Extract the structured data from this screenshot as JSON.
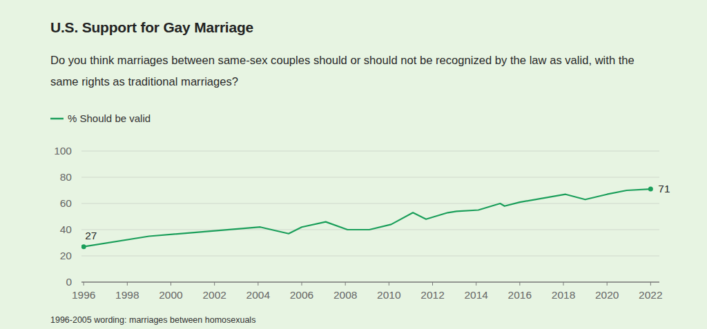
{
  "chart_data": {
    "type": "line",
    "title": "U.S. Support for Gay Marriage",
    "subtitle": "Do you think marriages between same-sex couples should or should not be recognized by the law as valid, with the same rights as traditional marriages?",
    "x": [
      1996,
      1999,
      2004.1,
      2005.4,
      2006,
      2007.1,
      2008.1,
      2009.1,
      2010.1,
      2011.1,
      2011.7,
      2012.7,
      2013.1,
      2014.1,
      2015.1,
      2015.3,
      2016,
      2018.1,
      2019,
      2020,
      2020.9,
      2022
    ],
    "series": [
      {
        "name": "% Should be valid",
        "color": "#1a9e5a",
        "marker": "endpoints",
        "values": [
          27,
          35,
          42,
          37,
          42,
          46,
          40,
          40,
          44,
          53,
          48,
          53,
          54,
          55,
          60,
          58,
          61,
          67,
          63,
          67,
          70,
          71
        ],
        "value_labels": [
          "27",
          null,
          null,
          null,
          null,
          null,
          null,
          null,
          null,
          null,
          null,
          null,
          null,
          null,
          null,
          null,
          null,
          null,
          null,
          null,
          null,
          "71"
        ]
      }
    ],
    "xlim": [
      1995.9,
      2022.4
    ],
    "ylim": [
      0,
      100
    ],
    "xticks": [
      1996,
      1998,
      2000,
      2002,
      2004,
      2006,
      2008,
      2010,
      2012,
      2014,
      2016,
      2018,
      2020,
      2022
    ],
    "yticks": [
      0,
      20,
      40,
      60,
      80,
      100
    ],
    "grid": true,
    "legend": "top-left",
    "note": "1996-2005 wording: marriages between homosexuals"
  }
}
